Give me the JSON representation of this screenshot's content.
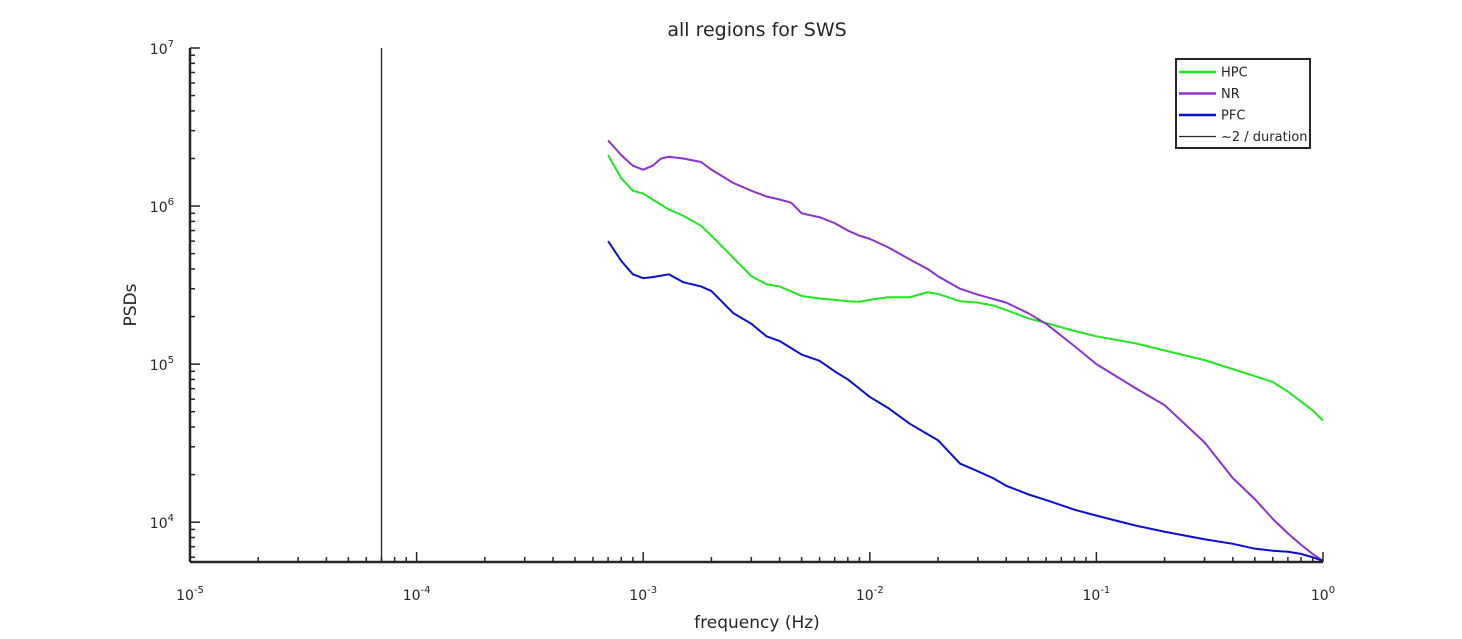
{
  "chart_data": {
    "type": "line",
    "title": "all regions for SWS",
    "xlabel": "frequency (Hz)",
    "ylabel": "PSDs",
    "xscale": "log",
    "yscale": "log",
    "xlim": [
      1e-05,
      1
    ],
    "ylim": [
      5600,
      10000000
    ],
    "grid": false,
    "legend_position": "top-right",
    "x_ticks": [
      {
        "value": 1e-05,
        "base": "10",
        "exp": "-5"
      },
      {
        "value": 0.0001,
        "base": "10",
        "exp": "-4"
      },
      {
        "value": 0.001,
        "base": "10",
        "exp": "-3"
      },
      {
        "value": 0.01,
        "base": "10",
        "exp": "-2"
      },
      {
        "value": 0.1,
        "base": "10",
        "exp": "-1"
      },
      {
        "value": 1,
        "base": "10",
        "exp": "0"
      }
    ],
    "y_ticks": [
      {
        "value": 10000,
        "base": "10",
        "exp": "4"
      },
      {
        "value": 100000,
        "base": "10",
        "exp": "5"
      },
      {
        "value": 1000000,
        "base": "10",
        "exp": "6"
      },
      {
        "value": 10000000,
        "base": "10",
        "exp": "7"
      }
    ],
    "series": [
      {
        "name": "HPC",
        "color": "#22e622",
        "x": [
          0.0007,
          0.0008,
          0.0009,
          0.001,
          0.0011,
          0.0013,
          0.0015,
          0.0018,
          0.002,
          0.0025,
          0.003,
          0.0035,
          0.004,
          0.005,
          0.006,
          0.007,
          0.008,
          0.009,
          0.01,
          0.012,
          0.015,
          0.018,
          0.02,
          0.025,
          0.03,
          0.035,
          0.04,
          0.05,
          0.06,
          0.08,
          0.1,
          0.15,
          0.2,
          0.3,
          0.4,
          0.5,
          0.6,
          0.7,
          0.8,
          0.9,
          1.0
        ],
        "y": [
          2100000,
          1500000,
          1250000,
          1200000,
          1100000,
          950000,
          870000,
          750000,
          650000,
          470000,
          360000,
          320000,
          310000,
          270000,
          260000,
          255000,
          250000,
          248000,
          255000,
          265000,
          265000,
          285000,
          278000,
          250000,
          245000,
          235000,
          220000,
          195000,
          182000,
          162000,
          150000,
          135000,
          122000,
          106000,
          93000,
          84000,
          77000,
          67000,
          58000,
          51000,
          44000
        ]
      },
      {
        "name": "NR",
        "color": "#8b32d2",
        "x": [
          0.0007,
          0.0008,
          0.0009,
          0.001,
          0.0011,
          0.0012,
          0.0013,
          0.0015,
          0.0018,
          0.002,
          0.0025,
          0.003,
          0.0035,
          0.004,
          0.0045,
          0.005,
          0.006,
          0.007,
          0.008,
          0.009,
          0.01,
          0.012,
          0.015,
          0.018,
          0.02,
          0.025,
          0.03,
          0.04,
          0.05,
          0.06,
          0.08,
          0.1,
          0.15,
          0.2,
          0.3,
          0.4,
          0.5,
          0.6,
          0.7,
          0.8,
          0.9,
          1.0
        ],
        "y": [
          2600000,
          2100000,
          1800000,
          1700000,
          1800000,
          2000000,
          2050000,
          2000000,
          1900000,
          1700000,
          1400000,
          1250000,
          1150000,
          1100000,
          1050000,
          900000,
          850000,
          780000,
          700000,
          650000,
          620000,
          550000,
          460000,
          400000,
          360000,
          300000,
          275000,
          245000,
          210000,
          180000,
          130000,
          100000,
          70000,
          55000,
          32000,
          19000,
          14000,
          10500,
          8500,
          7200,
          6300,
          5700
        ]
      },
      {
        "name": "PFC",
        "color": "#0c0cd2",
        "x": [
          0.0007,
          0.0008,
          0.0009,
          0.001,
          0.0011,
          0.0013,
          0.0015,
          0.0018,
          0.002,
          0.0025,
          0.003,
          0.0035,
          0.004,
          0.005,
          0.006,
          0.007,
          0.008,
          0.009,
          0.01,
          0.012,
          0.015,
          0.018,
          0.02,
          0.025,
          0.03,
          0.035,
          0.04,
          0.05,
          0.06,
          0.08,
          0.1,
          0.15,
          0.2,
          0.3,
          0.4,
          0.5,
          0.6,
          0.7,
          0.8,
          0.9,
          1.0
        ],
        "y": [
          600000,
          450000,
          370000,
          350000,
          355000,
          370000,
          330000,
          310000,
          290000,
          210000,
          180000,
          150000,
          140000,
          115000,
          105000,
          90000,
          80000,
          70000,
          62000,
          53000,
          42000,
          36000,
          33000,
          23500,
          21000,
          19000,
          17000,
          15000,
          13800,
          12000,
          11000,
          9500,
          8700,
          7800,
          7300,
          6800,
          6600,
          6500,
          6300,
          6000,
          5700
        ]
      },
      {
        "name": "~2 / duration",
        "color": "#262626",
        "type": "vertical_line",
        "x_value": 7e-05
      }
    ]
  }
}
